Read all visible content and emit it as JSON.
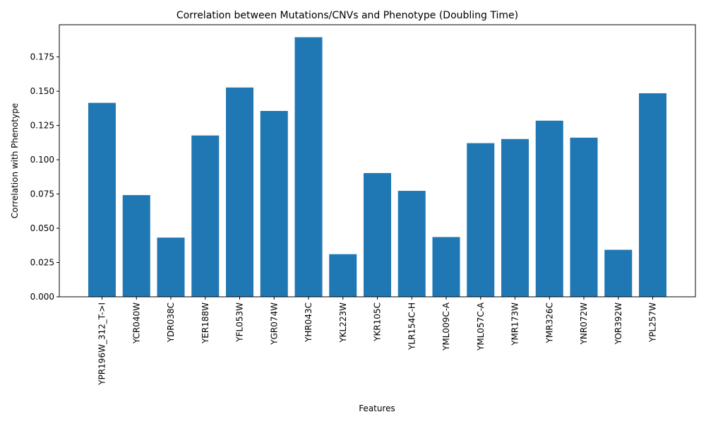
{
  "chart_data": {
    "type": "bar",
    "title": "Correlation between Mutations/CNVs and Phenotype (Doubling Time)",
    "xlabel": "Features",
    "ylabel": "Correlation with Phenotype",
    "bar_color": "#1f77b4",
    "ylim": [
      0,
      0.1985
    ],
    "yticks": [
      0.0,
      0.025,
      0.05,
      0.075,
      0.1,
      0.125,
      0.15,
      0.175
    ],
    "ytick_labels": [
      "0.000",
      "0.025",
      "0.050",
      "0.075",
      "0.100",
      "0.125",
      "0.150",
      "0.175"
    ],
    "grid": false,
    "categories": [
      "YPR196W_312_T->I",
      "YCR040W",
      "YDR038C",
      "YER188W",
      "YFL053W",
      "YGR074W",
      "YHR043C",
      "YKL223W",
      "YKR105C",
      "YLR154C-H",
      "YML009C-A",
      "YML057C-A",
      "YMR173W",
      "YMR326C",
      "YNR072W",
      "YOR392W",
      "YPL257W"
    ],
    "values": [
      0.1415,
      0.0742,
      0.0432,
      0.1177,
      0.1527,
      0.1356,
      0.1894,
      0.0311,
      0.0903,
      0.0773,
      0.0436,
      0.1121,
      0.1151,
      0.1285,
      0.1161,
      0.0343,
      0.1485
    ]
  }
}
